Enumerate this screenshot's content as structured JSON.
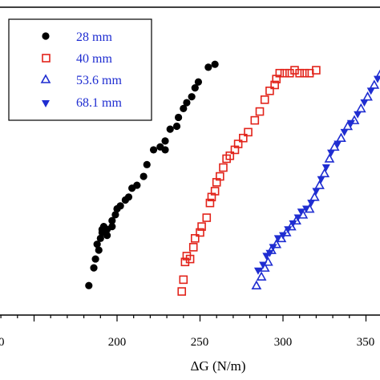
{
  "chart_data": {
    "type": "scatter",
    "xlabel": "ΔG (N/m)",
    "ylabel": "",
    "xlim": [
      100,
      370
    ],
    "x_ticks": [
      "200",
      "250",
      "300",
      "350"
    ],
    "x_tick_partial_left": "0",
    "legend_position": "top-left",
    "grid": false,
    "series": [
      {
        "name": "28 mm",
        "marker": "filled-circle",
        "color": "#000000",
        "points": [
          [
            183,
            0.1
          ],
          [
            186,
            0.16
          ],
          [
            187,
            0.19
          ],
          [
            189,
            0.22
          ],
          [
            188,
            0.24
          ],
          [
            190,
            0.26
          ],
          [
            191,
            0.28
          ],
          [
            191,
            0.29
          ],
          [
            192,
            0.3
          ],
          [
            194,
            0.29
          ],
          [
            194,
            0.27
          ],
          [
            197,
            0.3
          ],
          [
            197,
            0.32
          ],
          [
            199,
            0.34
          ],
          [
            200,
            0.36
          ],
          [
            202,
            0.37
          ],
          [
            205,
            0.39
          ],
          [
            207,
            0.4
          ],
          [
            209,
            0.43
          ],
          [
            212,
            0.44
          ],
          [
            216,
            0.47
          ],
          [
            218,
            0.51
          ],
          [
            222,
            0.56
          ],
          [
            226,
            0.57
          ],
          [
            229,
            0.56
          ],
          [
            229,
            0.59
          ],
          [
            232,
            0.63
          ],
          [
            236,
            0.64
          ],
          [
            237,
            0.67
          ],
          [
            240,
            0.7
          ],
          [
            242,
            0.72
          ],
          [
            245,
            0.74
          ],
          [
            247,
            0.77
          ],
          [
            249,
            0.79
          ],
          [
            255,
            0.84
          ],
          [
            259,
            0.85
          ]
        ]
      },
      {
        "name": "40 mm",
        "marker": "open-square",
        "color": "#e2231a",
        "points": [
          [
            239,
            0.08
          ],
          [
            240,
            0.12
          ],
          [
            241,
            0.18
          ],
          [
            242,
            0.2
          ],
          [
            244,
            0.19
          ],
          [
            246,
            0.23
          ],
          [
            247,
            0.26
          ],
          [
            250,
            0.28
          ],
          [
            251,
            0.3
          ],
          [
            254,
            0.33
          ],
          [
            256,
            0.38
          ],
          [
            257,
            0.4
          ],
          [
            259,
            0.42
          ],
          [
            260,
            0.45
          ],
          [
            262,
            0.47
          ],
          [
            264,
            0.5
          ],
          [
            266,
            0.53
          ],
          [
            268,
            0.54
          ],
          [
            271,
            0.56
          ],
          [
            273,
            0.58
          ],
          [
            276,
            0.6
          ],
          [
            279,
            0.62
          ],
          [
            283,
            0.66
          ],
          [
            286,
            0.69
          ],
          [
            289,
            0.73
          ],
          [
            292,
            0.76
          ],
          [
            295,
            0.78
          ],
          [
            296,
            0.8
          ],
          [
            298,
            0.82
          ],
          [
            301,
            0.82
          ],
          [
            304,
            0.82
          ],
          [
            307,
            0.83
          ],
          [
            310,
            0.82
          ],
          [
            313,
            0.82
          ],
          [
            316,
            0.82
          ],
          [
            320,
            0.83
          ]
        ]
      },
      {
        "name": "53.6 mm",
        "marker": "open-triangle-up",
        "color": "#1f2dd1",
        "points": [
          [
            284,
            0.1
          ],
          [
            287,
            0.13
          ],
          [
            289,
            0.16
          ],
          [
            291,
            0.18
          ],
          [
            293,
            0.22
          ],
          [
            296,
            0.24
          ],
          [
            299,
            0.26
          ],
          [
            302,
            0.28
          ],
          [
            305,
            0.3
          ],
          [
            308,
            0.32
          ],
          [
            312,
            0.34
          ],
          [
            316,
            0.36
          ],
          [
            319,
            0.4
          ],
          [
            322,
            0.44
          ],
          [
            325,
            0.48
          ],
          [
            328,
            0.53
          ],
          [
            331,
            0.57
          ],
          [
            335,
            0.6
          ],
          [
            339,
            0.64
          ],
          [
            343,
            0.66
          ],
          [
            347,
            0.7
          ],
          [
            351,
            0.74
          ],
          [
            355,
            0.78
          ],
          [
            359,
            0.82
          ],
          [
            362,
            0.85
          ]
        ]
      },
      {
        "name": "68.1 mm",
        "marker": "filled-triangle-down",
        "color": "#1f2dd1",
        "points": [
          [
            285,
            0.15
          ],
          [
            288,
            0.17
          ],
          [
            290,
            0.2
          ],
          [
            292,
            0.21
          ],
          [
            294,
            0.23
          ],
          [
            297,
            0.26
          ],
          [
            300,
            0.27
          ],
          [
            303,
            0.29
          ],
          [
            306,
            0.31
          ],
          [
            309,
            0.33
          ],
          [
            311,
            0.35
          ],
          [
            314,
            0.36
          ],
          [
            317,
            0.38
          ],
          [
            320,
            0.42
          ],
          [
            323,
            0.46
          ],
          [
            326,
            0.5
          ],
          [
            329,
            0.55
          ],
          [
            333,
            0.58
          ],
          [
            337,
            0.62
          ],
          [
            341,
            0.65
          ],
          [
            345,
            0.68
          ],
          [
            349,
            0.72
          ],
          [
            353,
            0.76
          ],
          [
            357,
            0.8
          ],
          [
            361,
            0.83
          ],
          [
            364,
            0.87
          ]
        ]
      }
    ]
  }
}
